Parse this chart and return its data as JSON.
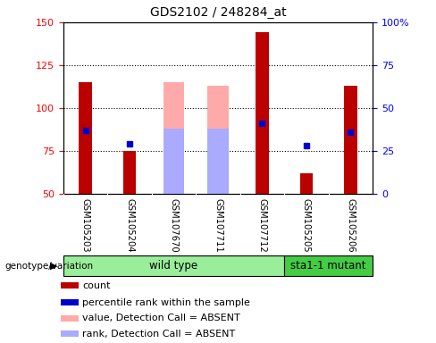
{
  "title": "GDS2102 / 248284_at",
  "samples": [
    "GSM105203",
    "GSM105204",
    "GSM107670",
    "GSM107711",
    "GSM107712",
    "GSM105205",
    "GSM105206"
  ],
  "wild_type_indices": [
    0,
    1,
    2,
    3,
    4
  ],
  "mutant_indices": [
    5,
    6
  ],
  "ylim_left": [
    50,
    150
  ],
  "ylim_right": [
    0,
    100
  ],
  "yticks_left": [
    50,
    75,
    100,
    125,
    150
  ],
  "yticks_right": [
    0,
    25,
    50,
    75,
    100
  ],
  "ytick_labels_right": [
    "0",
    "25",
    "50",
    "75",
    "100%"
  ],
  "count_values": [
    115,
    75,
    null,
    null,
    144,
    62,
    113
  ],
  "percentile_values": [
    87,
    79,
    null,
    null,
    91,
    78,
    86
  ],
  "absent_value_values": [
    null,
    null,
    115,
    113,
    null,
    null,
    null
  ],
  "absent_rank_values": [
    null,
    null,
    88,
    88,
    null,
    null,
    null
  ],
  "bar_width": 0.3,
  "count_color": "#bb0000",
  "percentile_color": "#0000cc",
  "absent_value_color": "#ffaaaa",
  "absent_rank_color": "#aaaaff",
  "group_wild_color": "#99ee99",
  "group_mutant_color": "#44cc44",
  "legend_items": [
    {
      "label": "count",
      "color": "#bb0000"
    },
    {
      "label": "percentile rank within the sample",
      "color": "#0000cc"
    },
    {
      "label": "value, Detection Call = ABSENT",
      "color": "#ffaaaa"
    },
    {
      "label": "rank, Detection Call = ABSENT",
      "color": "#aaaaff"
    }
  ]
}
